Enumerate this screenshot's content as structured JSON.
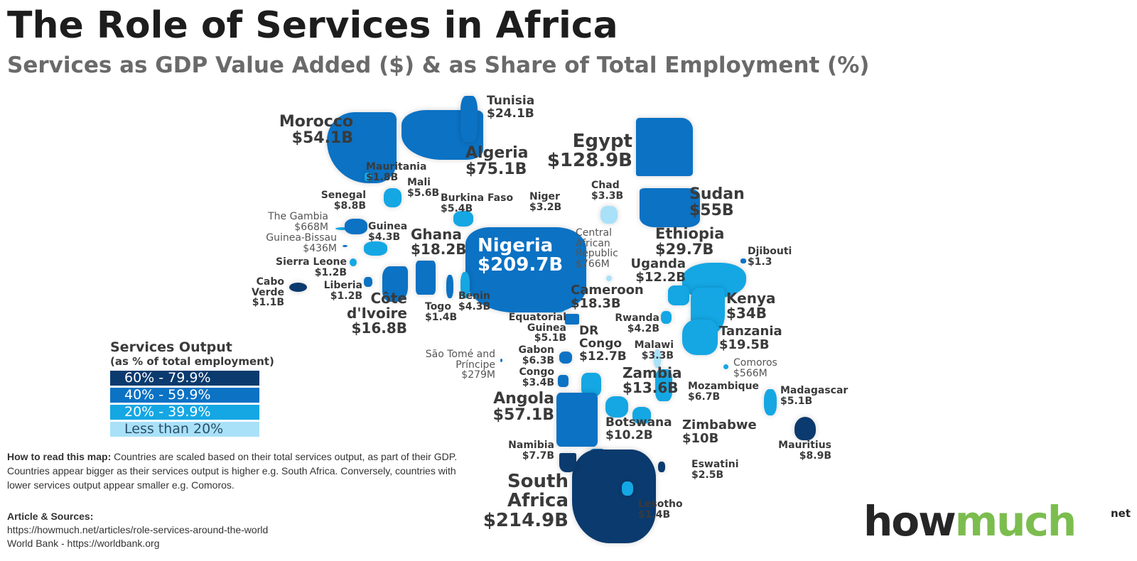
{
  "title": "The Role of Services in Africa",
  "subtitle": "Services as GDP Value Added ($) & as Share of Total Employment (%)",
  "colors": {
    "60-79.9": "#0b3a6e",
    "40-59.9": "#0b72c4",
    "20-39.9": "#14a7e4",
    "lt20": "#a9e1f8",
    "brand_green": "#7cbd4f"
  },
  "legend": {
    "title": "Services Output",
    "subtitle": "(as % of total employment)",
    "items": [
      "60% - 79.9%",
      "40% - 59.9%",
      "20% - 39.9%",
      "Less than 20%"
    ]
  },
  "countries": [
    {
      "name": "Morocco",
      "value": "$54.1B",
      "tier": "40-59.9"
    },
    {
      "name": "Algeria",
      "value": "$75.1B",
      "tier": "40-59.9"
    },
    {
      "name": "Tunisia",
      "value": "$24.1B",
      "tier": "40-59.9"
    },
    {
      "name": "Egypt",
      "value": "$128.9B",
      "tier": "40-59.9"
    },
    {
      "name": "Sudan",
      "value": "$55B",
      "tier": "40-59.9"
    },
    {
      "name": "Ethiopia",
      "value": "$29.7B",
      "tier": "20-39.9"
    },
    {
      "name": "Djibouti",
      "value": "$1.3",
      "tier": "40-59.9"
    },
    {
      "name": "Uganda",
      "value": "$12.2B",
      "tier": "20-39.9"
    },
    {
      "name": "Kenya",
      "value": "$34B",
      "tier": "20-39.9"
    },
    {
      "name": "Tanzania",
      "value": "$19.5B",
      "tier": "20-39.9"
    },
    {
      "name": "Rwanda",
      "value": "$4.2B",
      "tier": "20-39.9"
    },
    {
      "name": "Malawi",
      "value": "$3.3B",
      "tier": "lt20"
    },
    {
      "name": "Comoros",
      "value": "$566M",
      "tier": "20-39.9"
    },
    {
      "name": "Mozambique",
      "value": "$6.7B",
      "tier": "20-39.9"
    },
    {
      "name": "Madagascar",
      "value": "$5.1B",
      "tier": "20-39.9"
    },
    {
      "name": "Mauritius",
      "value": "$8.9B",
      "tier": "60-79.9"
    },
    {
      "name": "Zambia",
      "value": "$13.6B",
      "tier": "20-39.9"
    },
    {
      "name": "Zimbabwe",
      "value": "$10B",
      "tier": "20-39.9"
    },
    {
      "name": "DR Congo",
      "value": "$12.7B",
      "tier": "20-39.9"
    },
    {
      "name": "Botswana",
      "value": "$10.2B",
      "tier": "40-59.9"
    },
    {
      "name": "South Africa",
      "value": "$214.9B",
      "tier": "60-79.9"
    },
    {
      "name": "Lesotho",
      "value": "$1.4B",
      "tier": "20-39.9"
    },
    {
      "name": "Eswatini",
      "value": "$2.5B",
      "tier": "60-79.9"
    },
    {
      "name": "Namibia",
      "value": "$7.7B",
      "tier": "60-79.9"
    },
    {
      "name": "Angola",
      "value": "$57.1B",
      "tier": "40-59.9"
    },
    {
      "name": "Congo",
      "value": "$3.4B",
      "tier": "40-59.9"
    },
    {
      "name": "Gabon",
      "value": "$6.3B",
      "tier": "40-59.9"
    },
    {
      "name": "Equatorial Guinea",
      "value": "$5.1B",
      "tier": "40-59.9"
    },
    {
      "name": "São Tomé and Príncipe",
      "value": "$279M",
      "tier": "40-59.9"
    },
    {
      "name": "Cameroon",
      "value": "$18.3B",
      "tier": "20-39.9"
    },
    {
      "name": "Central African Republic",
      "value": "$766M",
      "tier": "lt20"
    },
    {
      "name": "Chad",
      "value": "$3.3B",
      "tier": "lt20"
    },
    {
      "name": "Niger",
      "value": "$3.2B",
      "tier": "lt20"
    },
    {
      "name": "Nigeria",
      "value": "$209.7B",
      "tier": "40-59.9"
    },
    {
      "name": "Benin",
      "value": "$4.3B",
      "tier": "20-39.9"
    },
    {
      "name": "Togo",
      "value": "$1.4B",
      "tier": "40-59.9"
    },
    {
      "name": "Ghana",
      "value": "$18.2B",
      "tier": "40-59.9"
    },
    {
      "name": "Burkina Faso",
      "value": "$5.4B",
      "tier": "20-39.9"
    },
    {
      "name": "Côte d'Ivoire",
      "value": "$16.8B",
      "tier": "40-59.9"
    },
    {
      "name": "Liberia",
      "value": "$1.2B",
      "tier": "40-59.9"
    },
    {
      "name": "Sierra Leone",
      "value": "$1.2B",
      "tier": "20-39.9"
    },
    {
      "name": "Guinea",
      "value": "$4.3B",
      "tier": "20-39.9"
    },
    {
      "name": "Guinea-Bissau",
      "value": "$436M",
      "tier": "40-59.9"
    },
    {
      "name": "The Gambia",
      "value": "$668M",
      "tier": "20-39.9"
    },
    {
      "name": "Senegal",
      "value": "$8.8B",
      "tier": "40-59.9"
    },
    {
      "name": "Mali",
      "value": "$5.6B",
      "tier": "20-39.9"
    },
    {
      "name": "Mauritania",
      "value": "$1.8B",
      "tier": "20-39.9"
    },
    {
      "name": "Cabo Verde",
      "value": "$1.1B",
      "tier": "60-79.9"
    }
  ],
  "how_to": {
    "heading": "How to read this map:",
    "text": " Countries are scaled based on their total services output, as part of their GDP. Countries appear bigger as their services output is higher e.g. South Africa. Conversely, countries with lower services output appear smaller e.g. Comoros."
  },
  "sources": {
    "heading": "Article & Sources:",
    "lines": [
      "https://howmuch.net/articles/role-services-around-the-world",
      "World Bank - https://worldbank.org"
    ]
  },
  "logo": {
    "part1": "how",
    "part2": "much",
    "suffix": "net"
  }
}
